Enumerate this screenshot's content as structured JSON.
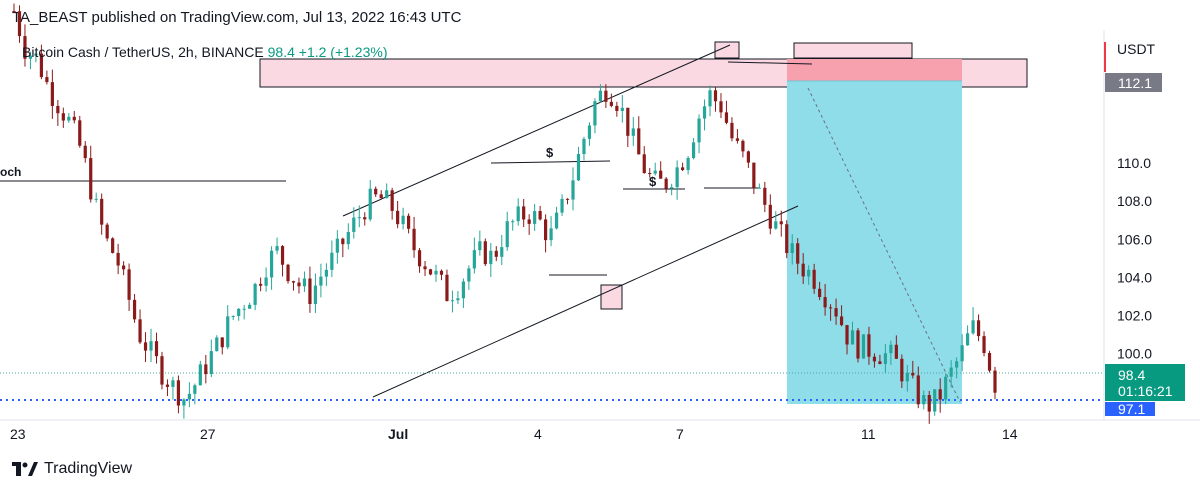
{
  "header": {
    "publisher": "TA_BEAST published on TradingView.com, Jul 13, 2022 16:43 UTC"
  },
  "legend": {
    "symbol": "Bitcoin Cash / TetherUS, 2h, BINANCE",
    "price": "98.4",
    "change": "+1.2 (+1.23%)"
  },
  "left_label": "och",
  "brand": {
    "name": "TradingView"
  },
  "colors": {
    "up": "#26a69a",
    "down": "#8b1a1a",
    "zone": "#fbd9e3",
    "zone_red": "#f7a0ae",
    "target": "#8fdde9",
    "price_tag": "#089981",
    "stop_tag": "#787b86",
    "dotted": "#2962ff"
  },
  "chart_data": {
    "type": "candlestick",
    "title": "Bitcoin Cash / TetherUS, 2h, BINANCE",
    "currency": "USDT",
    "ylim": [
      96.5,
      117.0
    ],
    "y_ticks": [
      "100.0",
      "102.0",
      "104.0",
      "106.0",
      "108.0",
      "110.0"
    ],
    "x_ticks": [
      "23",
      "27",
      "Jul",
      "4",
      "7",
      "11",
      "14"
    ],
    "last_price": "98.4",
    "countdown": "01:16:21",
    "stop_label": "112.1",
    "target_label": "97.1",
    "annotations": [
      "$",
      "$"
    ],
    "close_path": [
      118.0,
      116.0,
      115.5,
      114.0,
      113.0,
      112.0,
      110.5,
      108.0,
      106.0,
      105.0,
      103.0,
      101.0,
      100.0,
      99.0,
      98.2,
      97.6,
      98.5,
      99.6,
      100.6,
      101.8,
      102.6,
      103.3,
      104.6,
      105.4,
      104.4,
      103.6,
      103.1,
      104.2,
      105.0,
      106.0,
      107.0,
      107.9,
      108.2,
      107.8,
      106.8,
      105.6,
      104.8,
      104.0,
      103.1,
      103.6,
      104.6,
      105.4,
      105.0,
      106.4,
      107.0,
      107.4,
      107.0,
      106.1,
      107.5,
      109.3,
      111.4,
      113.3,
      114.0,
      113.2,
      111.6,
      110.0,
      109.0,
      108.9,
      109.6,
      110.6,
      112.4,
      113.6,
      113.0,
      111.2,
      110.2,
      108.8,
      107.6,
      106.4,
      105.4,
      104.6,
      104.1,
      103.2,
      102.4,
      101.0,
      100.4,
      100.2,
      100.0,
      99.8,
      98.9,
      98.0,
      97.2,
      97.6,
      98.8,
      99.9,
      101.4,
      100.6,
      98.4
    ]
  }
}
